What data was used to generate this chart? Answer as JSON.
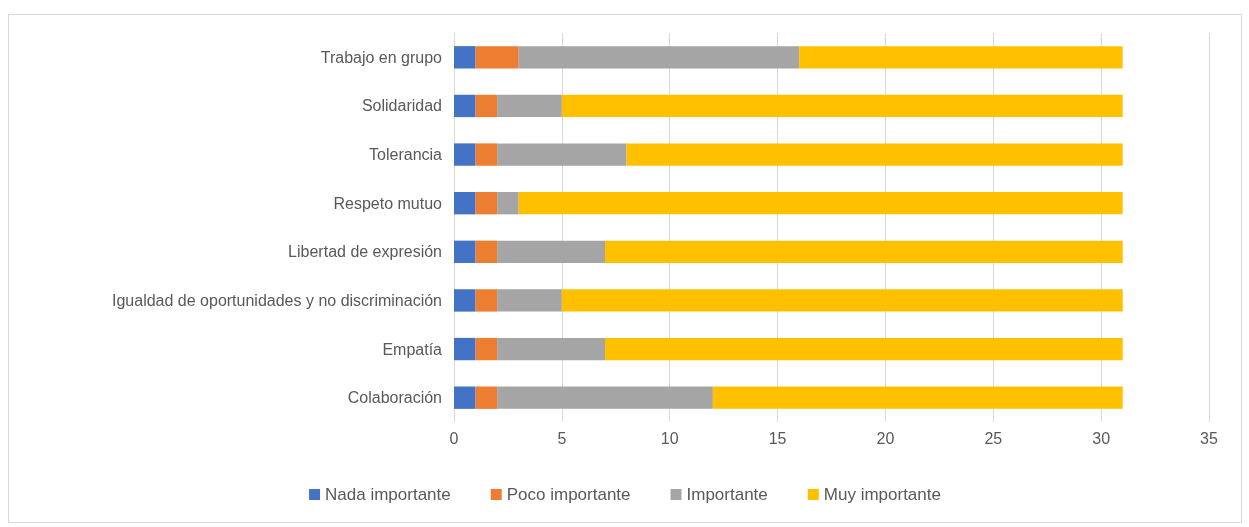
{
  "chart_data": {
    "type": "bar",
    "orientation": "horizontal",
    "stacked": true,
    "categories": [
      "Trabajo en grupo",
      "Solidaridad",
      "Tolerancia",
      "Respeto mutuo",
      "Libertad de expresión",
      "Igualdad de oportunidades y no discriminación",
      "Empatía",
      "Colaboración"
    ],
    "series": [
      {
        "name": "Nada importante",
        "color": "#4472c4",
        "values": [
          1,
          1,
          1,
          1,
          1,
          1,
          1,
          1
        ]
      },
      {
        "name": "Poco importante",
        "color": "#ed7d31",
        "values": [
          2,
          1,
          1,
          1,
          1,
          1,
          1,
          1
        ]
      },
      {
        "name": "Importante",
        "color": "#a5a5a5",
        "values": [
          13,
          3,
          6,
          1,
          5,
          3,
          5,
          10
        ]
      },
      {
        "name": "Muy importante",
        "color": "#ffc000",
        "values": [
          15,
          26,
          23,
          28,
          24,
          26,
          24,
          19
        ]
      }
    ],
    "xlim": [
      0,
      35
    ],
    "xticks": [
      0,
      5,
      10,
      15,
      20,
      25,
      30,
      35
    ],
    "grid": "x",
    "legend": "bottom"
  }
}
